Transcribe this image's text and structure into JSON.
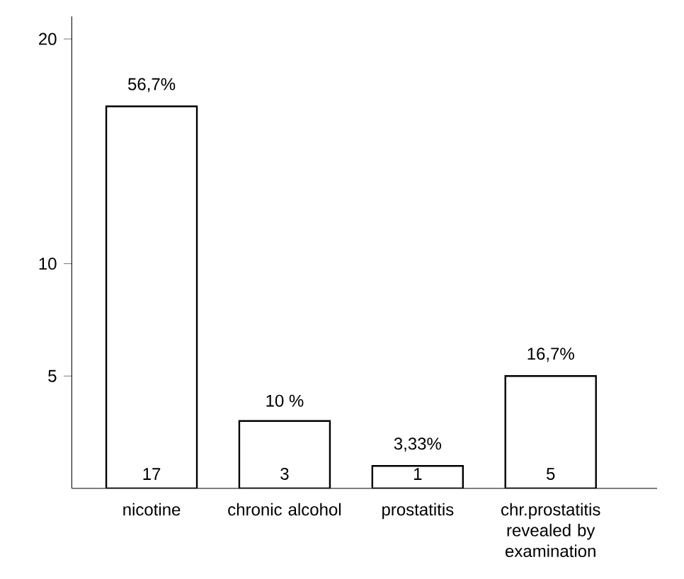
{
  "chart_data": {
    "type": "bar",
    "categories": [
      "nicotine",
      "chronic alcohol",
      "prostatitis",
      "chr.prostatitis revealed by examination"
    ],
    "values": [
      17,
      3,
      1,
      5
    ],
    "value_labels": [
      "17",
      "3",
      "1",
      "5"
    ],
    "annotations": [
      {
        "text": "56,7%",
        "x": "nicotine",
        "y": 17
      },
      {
        "text": "10 %",
        "x": "chronic alcohol",
        "y": 3
      },
      {
        "text": "3,33%",
        "x": "prostatitis",
        "y": 1
      },
      {
        "text": "16,7%",
        "x": "chr.prostatitis revealed by examination",
        "y": 5
      }
    ],
    "color": "#ffffff",
    "ylim": [
      0,
      21
    ],
    "yticks": [
      5,
      10,
      20
    ],
    "grid": false
  }
}
